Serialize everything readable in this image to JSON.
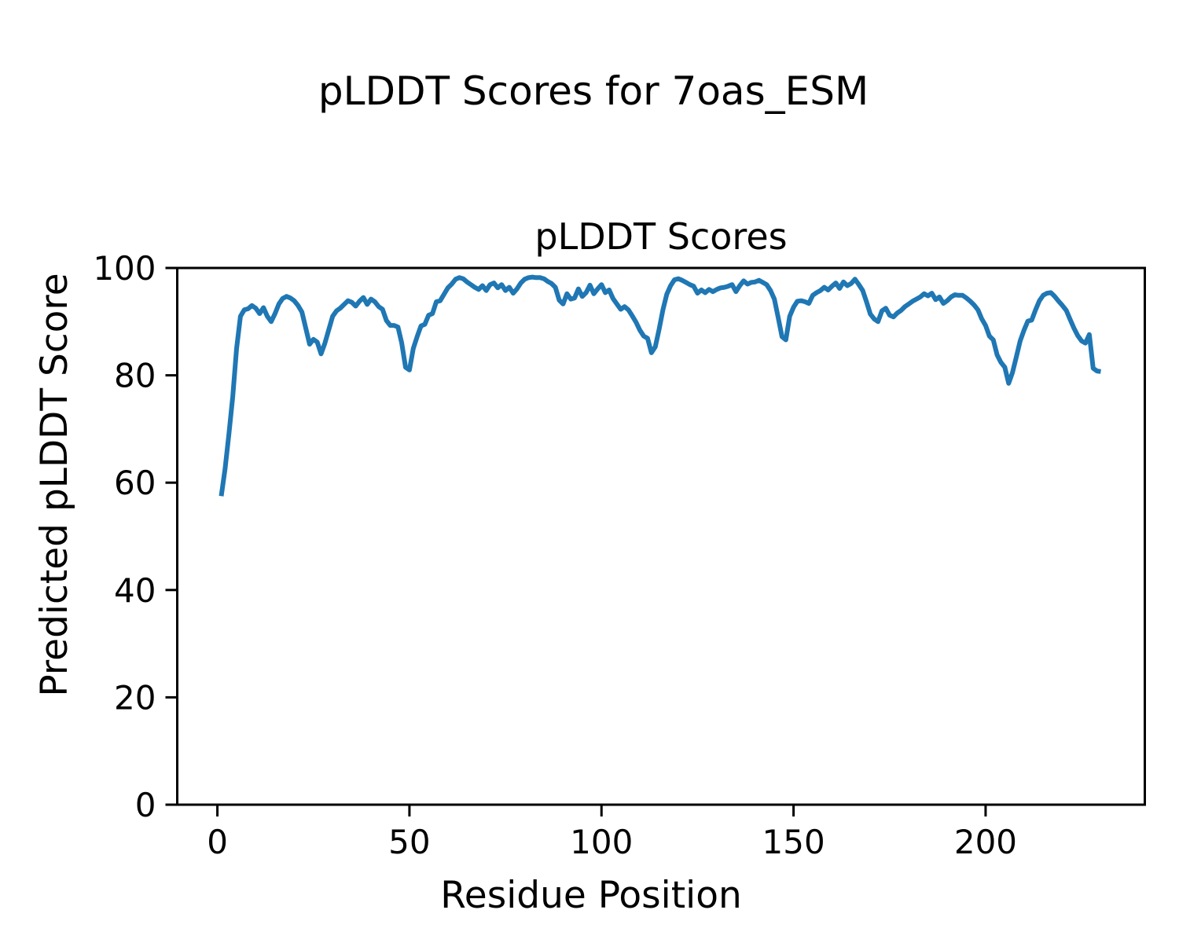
{
  "figure": {
    "background": "#ffffff",
    "suptitle": "pLDDT Scores for 7oas_ESM"
  },
  "chart_data": {
    "type": "line",
    "title": "pLDDT Scores",
    "suptitle": "pLDDT Scores for 7oas_ESM",
    "xlabel": "Residue Position",
    "ylabel": "Predicted pLDDT Score",
    "xlim": [
      -10.45,
      241.45
    ],
    "ylim": [
      0,
      100
    ],
    "xticks": [
      0,
      50,
      100,
      150,
      200
    ],
    "yticks": [
      0,
      20,
      40,
      60,
      80,
      100
    ],
    "grid": false,
    "legend": "none",
    "line_color": "#1f77b4",
    "axis_color": "#000000",
    "series": [
      {
        "name": "pLDDT",
        "x_start": 1,
        "x_step": 1,
        "y": [
          57.5,
          62.5,
          69.0,
          76.0,
          85.0,
          91.0,
          92.2,
          92.4,
          93.0,
          92.5,
          91.5,
          92.6,
          91.0,
          90.0,
          91.5,
          93.3,
          94.3,
          94.7,
          94.4,
          93.9,
          93.0,
          91.8,
          88.8,
          85.8,
          86.7,
          86.2,
          84.0,
          86.0,
          88.5,
          91.0,
          92.0,
          92.5,
          93.2,
          93.9,
          93.6,
          92.9,
          93.8,
          94.5,
          93.2,
          94.2,
          93.7,
          92.8,
          92.3,
          90.2,
          89.3,
          89.3,
          89.0,
          86.0,
          81.5,
          81.0,
          85.0,
          87.2,
          89.2,
          89.5,
          91.2,
          91.5,
          93.7,
          93.9,
          95.1,
          96.3,
          97.0,
          97.9,
          98.2,
          98.0,
          97.4,
          96.9,
          96.4,
          96.0,
          96.7,
          95.8,
          96.9,
          97.2,
          96.3,
          96.9,
          95.8,
          96.4,
          95.3,
          96.1,
          97.2,
          97.9,
          98.2,
          98.3,
          98.2,
          98.2,
          98.0,
          97.5,
          97.1,
          96.4,
          94.0,
          93.3,
          95.2,
          94.2,
          94.4,
          96.1,
          94.7,
          95.4,
          96.8,
          95.2,
          96.1,
          96.9,
          95.4,
          95.9,
          94.3,
          93.3,
          92.3,
          92.8,
          92.2,
          91.1,
          89.9,
          88.4,
          87.3,
          86.9,
          84.2,
          85.3,
          88.6,
          92.2,
          95.1,
          96.7,
          97.8,
          98.0,
          97.7,
          97.3,
          96.9,
          96.6,
          95.3,
          95.9,
          95.4,
          96.0,
          95.6,
          96.0,
          96.3,
          96.4,
          96.6,
          96.9,
          95.6,
          96.7,
          97.6,
          97.0,
          97.3,
          97.4,
          97.7,
          97.3,
          96.9,
          95.8,
          94.2,
          90.8,
          87.2,
          86.6,
          91.0,
          92.7,
          93.8,
          93.9,
          93.7,
          93.4,
          94.9,
          95.4,
          95.8,
          96.4,
          95.9,
          96.6,
          97.2,
          96.2,
          97.4,
          96.7,
          97.1,
          97.9,
          96.9,
          95.8,
          93.7,
          91.4,
          90.5,
          90.0,
          92.0,
          92.5,
          91.2,
          90.9,
          91.6,
          92.1,
          92.8,
          93.3,
          93.8,
          94.2,
          94.6,
          95.2,
          94.8,
          95.3,
          94.1,
          94.6,
          93.4,
          93.9,
          94.6,
          95.0,
          94.9,
          94.9,
          94.4,
          93.8,
          93.1,
          92.2,
          90.5,
          89.3,
          87.3,
          86.6,
          83.8,
          82.4,
          81.5,
          78.5,
          80.5,
          83.4,
          86.4,
          88.4,
          90.1,
          90.3,
          92.2,
          93.9,
          94.9,
          95.3,
          95.4,
          94.7,
          93.8,
          93.0,
          92.1,
          90.4,
          88.8,
          87.4,
          86.4,
          86.0,
          87.6,
          81.3,
          80.8,
          80.7
        ]
      }
    ]
  }
}
